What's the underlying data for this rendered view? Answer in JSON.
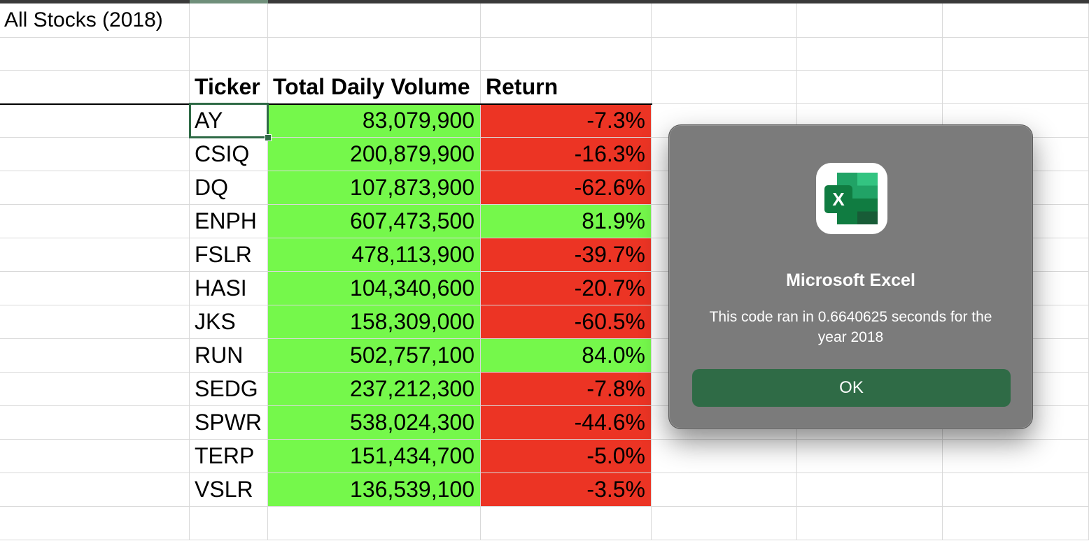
{
  "sheet": {
    "title": "All Stocks (2018)",
    "headers": {
      "ticker": "Ticker",
      "volume": "Total Daily Volume",
      "return": "Return"
    },
    "rows": [
      {
        "ticker": "AY",
        "volume": "83,079,900",
        "return": "-7.3%",
        "positive": false
      },
      {
        "ticker": "CSIQ",
        "volume": "200,879,900",
        "return": "-16.3%",
        "positive": false
      },
      {
        "ticker": "DQ",
        "volume": "107,873,900",
        "return": "-62.6%",
        "positive": false
      },
      {
        "ticker": "ENPH",
        "volume": "607,473,500",
        "return": "81.9%",
        "positive": true
      },
      {
        "ticker": "FSLR",
        "volume": "478,113,900",
        "return": "-39.7%",
        "positive": false
      },
      {
        "ticker": "HASI",
        "volume": "104,340,600",
        "return": "-20.7%",
        "positive": false
      },
      {
        "ticker": "JKS",
        "volume": "158,309,000",
        "return": "-60.5%",
        "positive": false
      },
      {
        "ticker": "RUN",
        "volume": "502,757,100",
        "return": "84.0%",
        "positive": true
      },
      {
        "ticker": "SEDG",
        "volume": "237,212,300",
        "return": "-7.8%",
        "positive": false
      },
      {
        "ticker": "SPWR",
        "volume": "538,024,300",
        "return": "-44.6%",
        "positive": false
      },
      {
        "ticker": "TERP",
        "volume": "151,434,700",
        "return": "-5.0%",
        "positive": false
      },
      {
        "ticker": "VSLR",
        "volume": "136,539,100",
        "return": "-3.5%",
        "positive": false
      }
    ],
    "colors": {
      "positive": "#75f84b",
      "negative": "#ec3424",
      "volume": "#75f84b"
    }
  },
  "dialog": {
    "icon": "excel-icon",
    "title": "Microsoft Excel",
    "message": "This code ran in 0.6640625 seconds for the year 2018",
    "ok_label": "OK",
    "button_color": "#2f6b46"
  }
}
